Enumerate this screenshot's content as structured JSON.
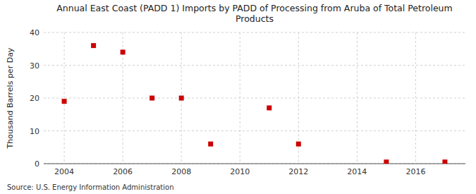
{
  "chart_data": {
    "type": "scatter",
    "title": "Annual East Coast (PADD 1) Imports by PADD of Processing from Aruba of Total Petroleum\nProducts",
    "ylabel": "Thousand Barrels per Day",
    "source": "Source: U.S. Energy Information Administration",
    "x": [
      2004,
      2005,
      2006,
      2007,
      2008,
      2009,
      2011,
      2012,
      2015,
      2017
    ],
    "values": [
      19,
      36,
      34,
      20,
      20,
      6,
      17,
      6,
      0.5,
      0.5
    ],
    "color": "#cc0000",
    "marker": "square",
    "xlim": [
      2003.3,
      2017.7
    ],
    "ylim": [
      0,
      40
    ],
    "xticks": [
      2004,
      2006,
      2008,
      2010,
      2012,
      2014,
      2016
    ],
    "yticks": [
      0,
      10,
      20,
      30,
      40
    ],
    "grid": true
  }
}
